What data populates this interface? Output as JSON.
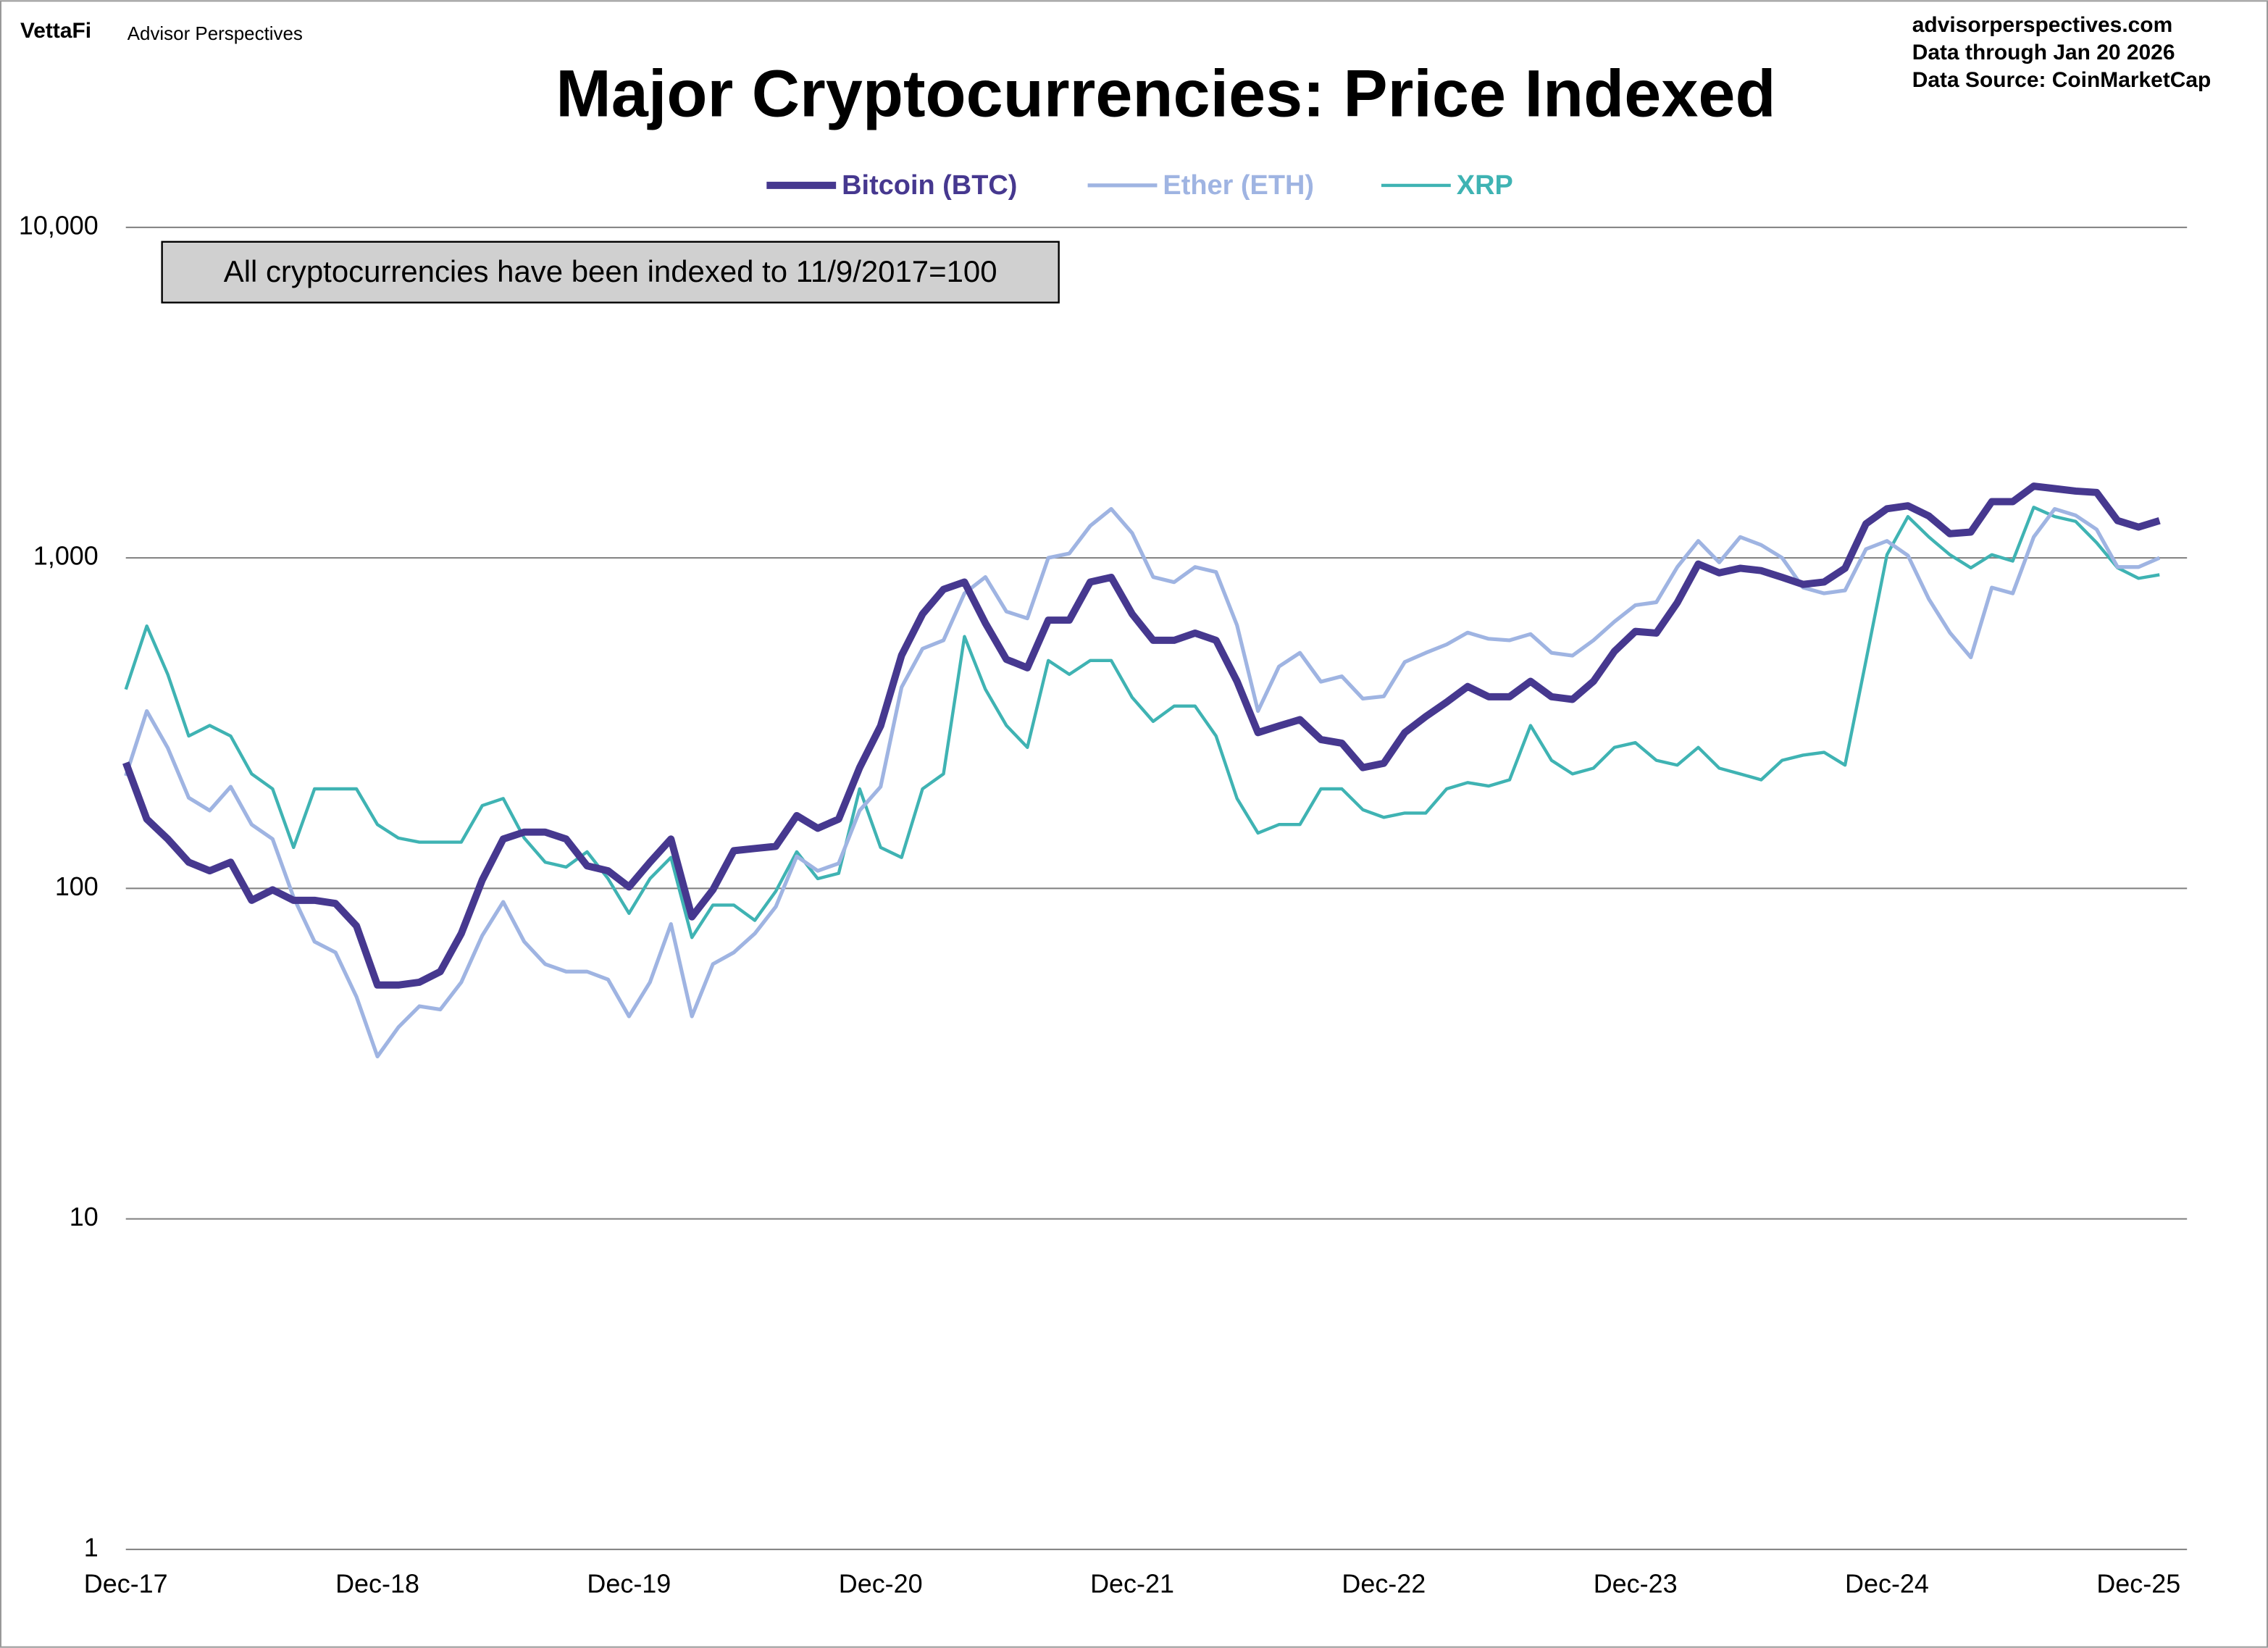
{
  "brand": {
    "logo": "VettaFi",
    "name": "Advisor Perspectives"
  },
  "source_lines": [
    "advisorperspectives.com",
    "Data through  Jan 20 2026",
    "Data Source:  CoinMarketCap"
  ],
  "chart_data": {
    "type": "line",
    "title": "Major Cryptocurrencies: Price Indexed",
    "annotation": "All cryptocurrencies have been indexed to 11/9/2017=100",
    "log_scale": true,
    "grid": true,
    "legend": "top",
    "ylim": [
      1,
      10000
    ],
    "yticks": [
      {
        "value": 10000,
        "label": "10,000"
      },
      {
        "value": 1000,
        "label": "1,000"
      },
      100,
      10,
      1
    ],
    "xticks": [
      "Dec-17",
      "Dec-18",
      "Dec-19",
      "Dec-20",
      "Dec-21",
      "Dec-22",
      "Dec-23",
      "Dec-24",
      "Dec-25"
    ],
    "x": [
      "Dec-17",
      "Jan-18",
      "Feb-18",
      "Mar-18",
      "Apr-18",
      "May-18",
      "Jun-18",
      "Jul-18",
      "Aug-18",
      "Sep-18",
      "Oct-18",
      "Nov-18",
      "Dec-18",
      "Jan-19",
      "Feb-19",
      "Mar-19",
      "Apr-19",
      "May-19",
      "Jun-19",
      "Jul-19",
      "Aug-19",
      "Sep-19",
      "Oct-19",
      "Nov-19",
      "Dec-19",
      "Jan-20",
      "Feb-20",
      "Mar-20",
      "Apr-20",
      "May-20",
      "Jun-20",
      "Jul-20",
      "Aug-20",
      "Sep-20",
      "Oct-20",
      "Nov-20",
      "Dec-20",
      "Jan-21",
      "Feb-21",
      "Mar-21",
      "Apr-21",
      "May-21",
      "Jun-21",
      "Jul-21",
      "Aug-21",
      "Sep-21",
      "Oct-21",
      "Nov-21",
      "Dec-21",
      "Jan-22",
      "Feb-22",
      "Mar-22",
      "Apr-22",
      "May-22",
      "Jun-22",
      "Jul-22",
      "Aug-22",
      "Sep-22",
      "Oct-22",
      "Nov-22",
      "Dec-22",
      "Jan-23",
      "Feb-23",
      "Mar-23",
      "Apr-23",
      "May-23",
      "Jun-23",
      "Jul-23",
      "Aug-23",
      "Sep-23",
      "Oct-23",
      "Nov-23",
      "Dec-23",
      "Jan-24",
      "Feb-24",
      "Mar-24",
      "Apr-24",
      "May-24",
      "Jun-24",
      "Jul-24",
      "Aug-24",
      "Sep-24",
      "Oct-24",
      "Nov-24",
      "Dec-24",
      "Jan-25",
      "Feb-25",
      "Mar-25",
      "Apr-25",
      "May-25",
      "Jun-25",
      "Jul-25",
      "Aug-25",
      "Sep-25",
      "Oct-25",
      "Nov-25",
      "Dec-25",
      "Jan-26"
    ],
    "series": [
      {
        "name": "Bitcoin (BTC)",
        "color": "#46388f",
        "values": [
          240,
          162,
          141,
          120,
          113,
          120,
          92,
          99,
          92,
          92,
          90,
          77,
          51,
          51,
          52,
          56,
          73,
          106,
          141,
          148,
          148,
          141,
          117,
          113,
          101,
          120,
          141,
          82,
          99,
          130,
          132,
          134,
          166,
          152,
          162,
          232,
          310,
          507,
          676,
          803,
          845,
          634,
          493,
          465,
          648,
          648,
          845,
          873,
          676,
          563,
          563,
          592,
          563,
          423,
          296,
          310,
          324,
          282,
          275,
          232,
          239,
          296,
          331,
          366,
          408,
          380,
          380,
          423,
          380,
          373,
          423,
          521,
          599,
          592,
          732,
          958,
          901,
          930,
          915,
          873,
          831,
          845,
          930,
          1268,
          1408,
          1437,
          1338,
          1183,
          1197,
          1479,
          1479,
          1648,
          1620,
          1592,
          1577,
          1296,
          1239,
          1296
        ]
      },
      {
        "name": "Ether (ETH)",
        "color": "#9fb4e2",
        "values": [
          219,
          344,
          266,
          188,
          172,
          203,
          156,
          141,
          94,
          69,
          64,
          47,
          31,
          38,
          44,
          43,
          52,
          72,
          91,
          69,
          59,
          56,
          56,
          53,
          41,
          52,
          78,
          41,
          59,
          64,
          73,
          88,
          125,
          113,
          119,
          172,
          203,
          406,
          531,
          563,
          781,
          875,
          688,
          656,
          1000,
          1031,
          1250,
          1406,
          1188,
          875,
          844,
          938,
          906,
          625,
          344,
          469,
          516,
          422,
          438,
          375,
          381,
          484,
          516,
          547,
          594,
          569,
          563,
          588,
          516,
          506,
          563,
          641,
          719,
          734,
          938,
          1125,
          969,
          1156,
          1094,
          1000,
          813,
          781,
          797,
          1063,
          1125,
          1016,
          750,
          594,
          500,
          813,
          781,
          1156,
          1406,
          1344,
          1219,
          938,
          938,
          1000
        ]
      },
      {
        "name": "XRP",
        "color": "#3fb3b3",
        "values": [
          400,
          622,
          444,
          289,
          311,
          289,
          222,
          200,
          133,
          200,
          200,
          200,
          156,
          142,
          138,
          138,
          138,
          178,
          187,
          142,
          120,
          116,
          129,
          107,
          84,
          107,
          124,
          71,
          89,
          89,
          80,
          98,
          129,
          107,
          111,
          200,
          133,
          124,
          200,
          222,
          578,
          400,
          311,
          267,
          489,
          444,
          489,
          489,
          378,
          320,
          356,
          356,
          289,
          187,
          147,
          156,
          156,
          200,
          200,
          173,
          164,
          169,
          169,
          200,
          209,
          204,
          213,
          311,
          244,
          222,
          231,
          267,
          276,
          244,
          236,
          267,
          231,
          222,
          213,
          244,
          253,
          258,
          236,
          489,
          1022,
          1333,
          1156,
          1022,
          933,
          1022,
          978,
          1422,
          1333,
          1289,
          1111,
          933,
          867,
          889
        ]
      }
    ]
  }
}
